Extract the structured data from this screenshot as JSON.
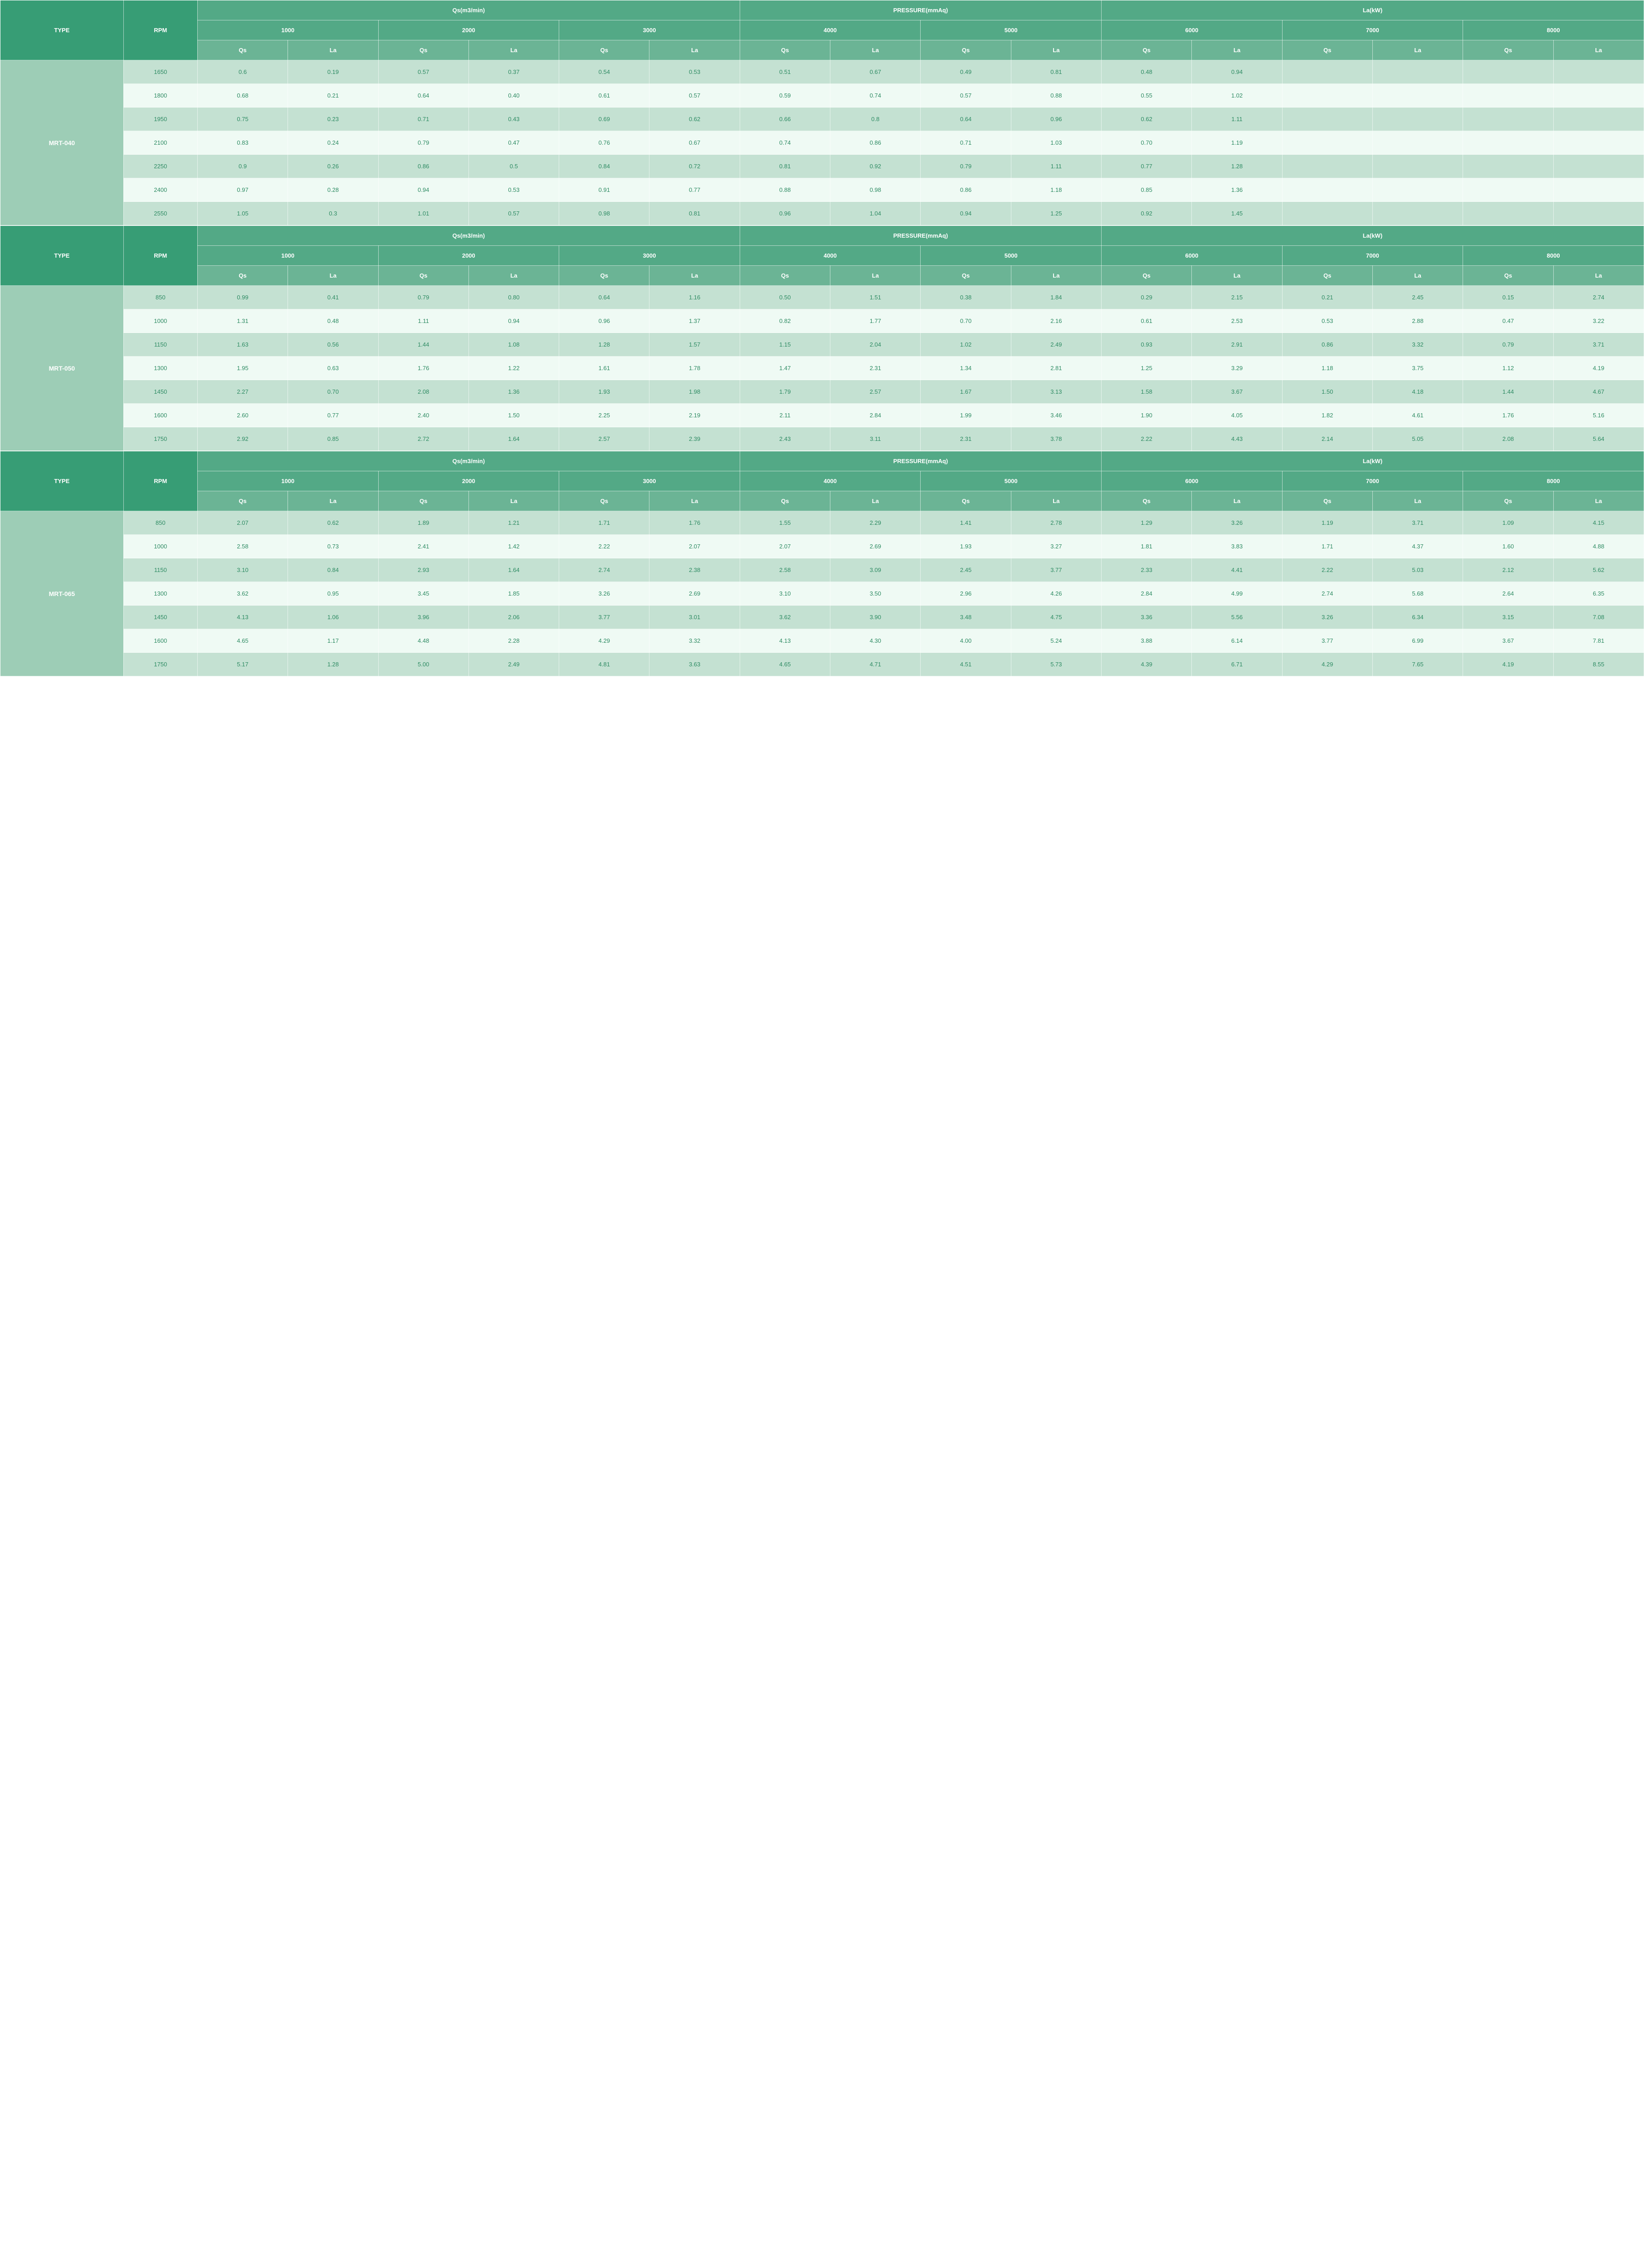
{
  "headers": {
    "type": "TYPE",
    "rpm": "RPM",
    "group_qs": "Qs(m3/min)",
    "group_pressure": "PRESSURE(mmAq)",
    "group_la": "La(kW)",
    "levels": [
      "1000",
      "2000",
      "3000",
      "4000",
      "5000",
      "6000",
      "7000",
      "8000"
    ],
    "sub_qs": "Qs",
    "sub_la": "La"
  },
  "colors": {
    "h_dark": "#379d75",
    "h_mid": "#53a986",
    "h_light": "#6bb495",
    "type_cell": "#9dcdb6",
    "row_even": "#c4e1d2",
    "row_odd": "#effaf4",
    "body_text": "#2e8b63"
  },
  "sections": [
    {
      "type": "MRT-040",
      "rows": [
        {
          "rpm": "1650",
          "cells": [
            "0.6",
            "0.19",
            "0.57",
            "0.37",
            "0.54",
            "0.53",
            "0.51",
            "0.67",
            "0.49",
            "0.81",
            "0.48",
            "0.94",
            "",
            "",
            "",
            ""
          ]
        },
        {
          "rpm": "1800",
          "cells": [
            "0.68",
            "0.21",
            "0.64",
            "0.40",
            "0.61",
            "0.57",
            "0.59",
            "0.74",
            "0.57",
            "0.88",
            "0.55",
            "1.02",
            "",
            "",
            "",
            ""
          ]
        },
        {
          "rpm": "1950",
          "cells": [
            "0.75",
            "0.23",
            "0.71",
            "0.43",
            "0.69",
            "0.62",
            "0.66",
            "0.8",
            "0.64",
            "0.96",
            "0.62",
            "1.11",
            "",
            "",
            "",
            ""
          ]
        },
        {
          "rpm": "2100",
          "cells": [
            "0.83",
            "0.24",
            "0.79",
            "0.47",
            "0.76",
            "0.67",
            "0.74",
            "0.86",
            "0.71",
            "1.03",
            "0.70",
            "1.19",
            "",
            "",
            "",
            ""
          ]
        },
        {
          "rpm": "2250",
          "cells": [
            "0.9",
            "0.26",
            "0.86",
            "0.5",
            "0.84",
            "0.72",
            "0.81",
            "0.92",
            "0.79",
            "1.11",
            "0.77",
            "1.28",
            "",
            "",
            "",
            ""
          ]
        },
        {
          "rpm": "2400",
          "cells": [
            "0.97",
            "0.28",
            "0.94",
            "0.53",
            "0.91",
            "0.77",
            "0.88",
            "0.98",
            "0.86",
            "1.18",
            "0.85",
            "1.36",
            "",
            "",
            "",
            ""
          ]
        },
        {
          "rpm": "2550",
          "cells": [
            "1.05",
            "0.3",
            "1.01",
            "0.57",
            "0.98",
            "0.81",
            "0.96",
            "1.04",
            "0.94",
            "1.25",
            "0.92",
            "1.45",
            "",
            "",
            "",
            ""
          ]
        }
      ]
    },
    {
      "type": "MRT-050",
      "rows": [
        {
          "rpm": "850",
          "cells": [
            "0.99",
            "0.41",
            "0.79",
            "0.80",
            "0.64",
            "1.16",
            "0.50",
            "1.51",
            "0.38",
            "1.84",
            "0.29",
            "2.15",
            "0.21",
            "2.45",
            "0.15",
            "2.74"
          ]
        },
        {
          "rpm": "1000",
          "cells": [
            "1.31",
            "0.48",
            "1.11",
            "0.94",
            "0.96",
            "1.37",
            "0.82",
            "1.77",
            "0.70",
            "2.16",
            "0.61",
            "2.53",
            "0.53",
            "2.88",
            "0.47",
            "3.22"
          ]
        },
        {
          "rpm": "1150",
          "cells": [
            "1.63",
            "0.56",
            "1.44",
            "1.08",
            "1.28",
            "1.57",
            "1.15",
            "2.04",
            "1.02",
            "2.49",
            "0.93",
            "2.91",
            "0.86",
            "3.32",
            "0.79",
            "3.71"
          ]
        },
        {
          "rpm": "1300",
          "cells": [
            "1.95",
            "0.63",
            "1.76",
            "1.22",
            "1.61",
            "1.78",
            "1.47",
            "2.31",
            "1.34",
            "2.81",
            "1.25",
            "3.29",
            "1.18",
            "3.75",
            "1.12",
            "4.19"
          ]
        },
        {
          "rpm": "1450",
          "cells": [
            "2.27",
            "0.70",
            "2.08",
            "1.36",
            "1.93",
            "1.98",
            "1.79",
            "2.57",
            "1.67",
            "3.13",
            "1.58",
            "3.67",
            "1.50",
            "4.18",
            "1.44",
            "4.67"
          ]
        },
        {
          "rpm": "1600",
          "cells": [
            "2.60",
            "0.77",
            "2.40",
            "1.50",
            "2.25",
            "2.19",
            "2.11",
            "2.84",
            "1.99",
            "3.46",
            "1.90",
            "4.05",
            "1.82",
            "4.61",
            "1.76",
            "5.16"
          ]
        },
        {
          "rpm": "1750",
          "cells": [
            "2.92",
            "0.85",
            "2.72",
            "1.64",
            "2.57",
            "2.39",
            "2.43",
            "3.11",
            "2.31",
            "3.78",
            "2.22",
            "4.43",
            "2.14",
            "5.05",
            "2.08",
            "5.64"
          ]
        }
      ]
    },
    {
      "type": "MRT-065",
      "rows": [
        {
          "rpm": "850",
          "cells": [
            "2.07",
            "0.62",
            "1.89",
            "1.21",
            "1.71",
            "1.76",
            "1.55",
            "2.29",
            "1.41",
            "2.78",
            "1.29",
            "3.26",
            "1.19",
            "3.71",
            "1.09",
            "4.15"
          ]
        },
        {
          "rpm": "1000",
          "cells": [
            "2.58",
            "0.73",
            "2.41",
            "1.42",
            "2.22",
            "2.07",
            "2.07",
            "2.69",
            "1.93",
            "3.27",
            "1.81",
            "3.83",
            "1.71",
            "4.37",
            "1.60",
            "4.88"
          ]
        },
        {
          "rpm": "1150",
          "cells": [
            "3.10",
            "0.84",
            "2.93",
            "1.64",
            "2.74",
            "2.38",
            "2.58",
            "3.09",
            "2.45",
            "3.77",
            "2.33",
            "4.41",
            "2.22",
            "5.03",
            "2.12",
            "5.62"
          ]
        },
        {
          "rpm": "1300",
          "cells": [
            "3.62",
            "0.95",
            "3.45",
            "1.85",
            "3.26",
            "2.69",
            "3.10",
            "3.50",
            "2.96",
            "4.26",
            "2.84",
            "4.99",
            "2.74",
            "5.68",
            "2.64",
            "6.35"
          ]
        },
        {
          "rpm": "1450",
          "cells": [
            "4.13",
            "1.06",
            "3.96",
            "2.06",
            "3.77",
            "3.01",
            "3.62",
            "3.90",
            "3.48",
            "4.75",
            "3.36",
            "5.56",
            "3.26",
            "6.34",
            "3.15",
            "7.08"
          ]
        },
        {
          "rpm": "1600",
          "cells": [
            "4.65",
            "1.17",
            "4.48",
            "2.28",
            "4.29",
            "3.32",
            "4.13",
            "4.30",
            "4.00",
            "5.24",
            "3.88",
            "6.14",
            "3.77",
            "6.99",
            "3.67",
            "7.81"
          ]
        },
        {
          "rpm": "1750",
          "cells": [
            "5.17",
            "1.28",
            "5.00",
            "2.49",
            "4.81",
            "3.63",
            "4.65",
            "4.71",
            "4.51",
            "5.73",
            "4.39",
            "6.71",
            "4.29",
            "7.65",
            "4.19",
            "8.55"
          ]
        }
      ]
    }
  ]
}
